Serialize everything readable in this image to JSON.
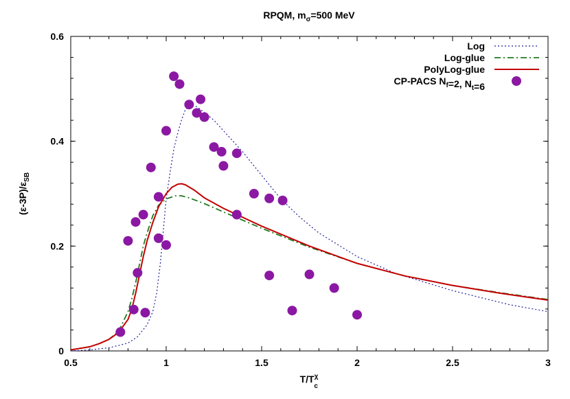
{
  "chart_data": {
    "type": "line",
    "title": {
      "main": "RPQM, m",
      "sub": "σ",
      "tail": "=500 MeV"
    },
    "xlabel": {
      "main": "T/T",
      "sup": "χ",
      "sub": "c"
    },
    "ylabel": {
      "p1": "(ε-3P)/ε",
      "sub": "SB"
    },
    "xlim": [
      0.5,
      3.0
    ],
    "ylim": [
      0,
      0.6
    ],
    "x_ticks": [
      0.5,
      1,
      1.5,
      2,
      2.5,
      3
    ],
    "x_tick_labels": [
      "0.5",
      "1",
      "1.5",
      "2",
      "2.5",
      "3"
    ],
    "y_ticks": [
      0,
      0.2,
      0.4,
      0.6
    ],
    "y_tick_labels": [
      "0",
      "0.2",
      "0.4",
      "0.6"
    ],
    "grid": false,
    "legend_placement": "top-right",
    "legend": [
      {
        "label": "Log",
        "kind": "line"
      },
      {
        "label": "Log-glue",
        "kind": "line"
      },
      {
        "label": "PolyLog-glue",
        "kind": "line"
      },
      {
        "kind": "points",
        "parts": [
          [
            "CP-PACS N",
            ""
          ],
          [
            "f",
            "sub"
          ],
          [
            "=2, N",
            ""
          ],
          [
            "t",
            "sub"
          ],
          [
            "=6",
            ""
          ]
        ]
      }
    ],
    "series": [
      {
        "name": "Log",
        "color": "#1f1f9a",
        "style": "dotted",
        "x": [
          0.5,
          0.6,
          0.7,
          0.8,
          0.85,
          0.9,
          0.93,
          0.95,
          0.97,
          0.99,
          1.0,
          1.02,
          1.04,
          1.06,
          1.08,
          1.1,
          1.13,
          1.16,
          1.2,
          1.25,
          1.3,
          1.4,
          1.5,
          1.6,
          1.7,
          1.8,
          2.0,
          2.2,
          2.5,
          2.8,
          3.0
        ],
        "y": [
          0.0,
          0.002,
          0.006,
          0.015,
          0.027,
          0.05,
          0.075,
          0.11,
          0.17,
          0.25,
          0.29,
          0.34,
          0.385,
          0.415,
          0.44,
          0.46,
          0.468,
          0.466,
          0.455,
          0.44,
          0.42,
          0.38,
          0.335,
          0.29,
          0.255,
          0.225,
          0.18,
          0.148,
          0.115,
          0.088,
          0.075
        ]
      },
      {
        "name": "Log-glue",
        "color": "#1e7a1e",
        "style": "dash-dot",
        "x": [
          0.5,
          0.6,
          0.65,
          0.7,
          0.75,
          0.8,
          0.82,
          0.84,
          0.86,
          0.88,
          0.9,
          0.93,
          0.96,
          1.0,
          1.05,
          1.08,
          1.12,
          1.2,
          1.3,
          1.5,
          1.75,
          2.0,
          2.25,
          2.5,
          2.75,
          3.0
        ],
        "y": [
          0.002,
          0.008,
          0.014,
          0.022,
          0.037,
          0.075,
          0.1,
          0.13,
          0.165,
          0.2,
          0.225,
          0.258,
          0.278,
          0.29,
          0.296,
          0.296,
          0.292,
          0.281,
          0.265,
          0.234,
          0.198,
          0.167,
          0.143,
          0.125,
          0.111,
          0.098
        ]
      },
      {
        "name": "PolyLog-glue",
        "color": "#c40000",
        "style": "solid",
        "x": [
          0.5,
          0.6,
          0.65,
          0.7,
          0.75,
          0.8,
          0.82,
          0.84,
          0.86,
          0.88,
          0.9,
          0.93,
          0.96,
          1.0,
          1.03,
          1.06,
          1.08,
          1.1,
          1.15,
          1.2,
          1.3,
          1.5,
          1.75,
          2.0,
          2.25,
          2.5,
          2.75,
          3.0
        ],
        "y": [
          0.002,
          0.008,
          0.014,
          0.022,
          0.035,
          0.06,
          0.08,
          0.11,
          0.145,
          0.18,
          0.21,
          0.245,
          0.275,
          0.3,
          0.312,
          0.318,
          0.319,
          0.317,
          0.306,
          0.292,
          0.272,
          0.238,
          0.2,
          0.167,
          0.143,
          0.125,
          0.11,
          0.097
        ]
      },
      {
        "name": "CP-PACS Nf=2, Nt=6",
        "color": "#8b18a3",
        "style": "points",
        "x": [
          0.76,
          0.8,
          0.83,
          0.84,
          0.85,
          0.88,
          0.89,
          0.92,
          0.96,
          0.96,
          1.0,
          1.0,
          1.04,
          1.07,
          1.12,
          1.16,
          1.18,
          1.2,
          1.25,
          1.29,
          1.3,
          1.37,
          1.37,
          1.46,
          1.54,
          1.54,
          1.61,
          1.66,
          1.75,
          1.88,
          2.0
        ],
        "y": [
          0.036,
          0.21,
          0.079,
          0.246,
          0.149,
          0.26,
          0.073,
          0.35,
          0.294,
          0.215,
          0.202,
          0.42,
          0.524,
          0.509,
          0.47,
          0.454,
          0.48,
          0.446,
          0.389,
          0.38,
          0.353,
          0.26,
          0.377,
          0.3,
          0.291,
          0.144,
          0.287,
          0.077,
          0.146,
          0.12,
          0.069
        ]
      }
    ]
  }
}
